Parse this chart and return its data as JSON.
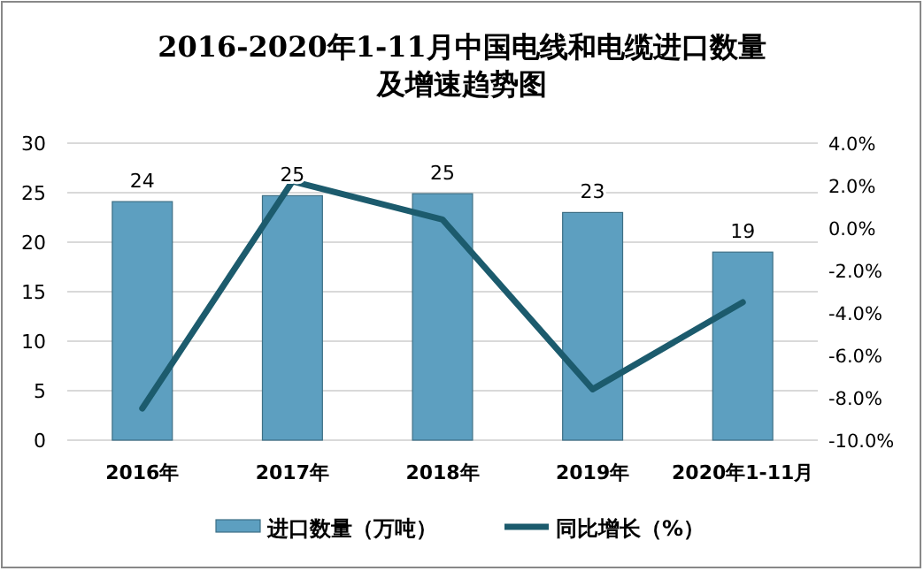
{
  "chart_data": {
    "type": "bar",
    "title": "2016-2020年1-11月中国电线和电缆进口数量及增速趋势图",
    "categories": [
      "2016年",
      "2017年",
      "2018年",
      "2019年",
      "2020年1-11月"
    ],
    "series": [
      {
        "name": "进口数量（万吨）",
        "color": "#5d9fc0",
        "values": [
          24.1,
          24.7,
          24.9,
          23.0,
          19.0
        ],
        "value_labels": [
          "24",
          "25",
          "25",
          "23",
          "19"
        ]
      },
      {
        "name": "同比增长（%）",
        "type": "line",
        "axis": "y2",
        "color": "#1c5b6d",
        "values": [
          -8.5,
          2.2,
          0.4,
          -7.6,
          -3.5
        ]
      }
    ],
    "ylim": [
      0,
      30
    ],
    "yticks": [
      0,
      5,
      10,
      15,
      20,
      25,
      30
    ],
    "y2lim": [
      -10,
      4
    ],
    "y2ticks": [
      {
        "value": -10,
        "label": "-10.0%"
      },
      {
        "value": -8,
        "label": "-8.0%"
      },
      {
        "value": -6,
        "label": "-6.0%"
      },
      {
        "value": -4,
        "label": "-4.0%"
      },
      {
        "value": -2,
        "label": "-2.0%"
      },
      {
        "value": 0,
        "label": "0.0%"
      },
      {
        "value": 2,
        "label": "2.0%"
      },
      {
        "value": 4,
        "label": "4.0%"
      }
    ],
    "grid": "y",
    "legend": "bottom",
    "marker": "none",
    "line_style": "solid"
  }
}
